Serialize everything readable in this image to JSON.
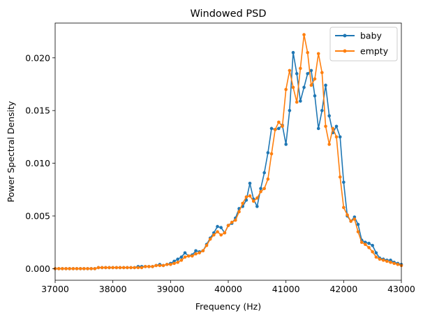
{
  "chart_data": {
    "type": "line",
    "title": "Windowed PSD",
    "xlabel": "Frequency (Hz)",
    "ylabel": "Power Spectral Density",
    "xlim": [
      37000,
      43000
    ],
    "ylim": [
      -0.0011,
      0.0233
    ],
    "xticks": [
      37000,
      38000,
      39000,
      40000,
      41000,
      42000,
      43000
    ],
    "xtick_labels": [
      "37000",
      "38000",
      "39000",
      "40000",
      "41000",
      "42000",
      "43000"
    ],
    "yticks": [
      0,
      0.005,
      0.01,
      0.015,
      0.02
    ],
    "ytick_labels": [
      "0.000",
      "0.005",
      "0.010",
      "0.015",
      "0.020"
    ],
    "grid": false,
    "legend_position": "top-right",
    "series": [
      {
        "name": "baby",
        "color": "#1f77b4",
        "marker": "dot",
        "x": [
          37000,
          37063,
          37125,
          37188,
          37250,
          37313,
          37375,
          37438,
          37500,
          37563,
          37625,
          37688,
          37750,
          37813,
          37875,
          37938,
          38000,
          38063,
          38125,
          38188,
          38250,
          38313,
          38375,
          38438,
          38500,
          38563,
          38625,
          38688,
          38750,
          38813,
          38875,
          38938,
          39000,
          39063,
          39125,
          39188,
          39250,
          39313,
          39375,
          39438,
          39500,
          39563,
          39625,
          39688,
          39750,
          39813,
          39875,
          39938,
          40000,
          40063,
          40125,
          40188,
          40250,
          40313,
          40375,
          40438,
          40500,
          40563,
          40625,
          40688,
          40750,
          40813,
          40875,
          40938,
          41000,
          41063,
          41125,
          41188,
          41250,
          41313,
          41375,
          41438,
          41500,
          41563,
          41625,
          41688,
          41750,
          41813,
          41875,
          41938,
          42000,
          42063,
          42125,
          42188,
          42250,
          42313,
          42375,
          42438,
          42500,
          42563,
          42625,
          42688,
          42750,
          42813,
          42875,
          42938,
          43000
        ],
        "y": [
          0.0,
          0.0,
          0.0,
          0.0,
          0.0,
          0.0,
          0.0,
          0.0,
          0.0,
          0.0,
          0.0,
          0.0,
          0.0001,
          0.0001,
          0.0001,
          0.0001,
          0.0001,
          0.0001,
          0.0001,
          0.0001,
          0.0001,
          0.0001,
          0.0001,
          0.0002,
          0.0002,
          0.0002,
          0.0002,
          0.0002,
          0.0003,
          0.0004,
          0.0003,
          0.0004,
          0.0005,
          0.0007,
          0.0009,
          0.0011,
          0.0015,
          0.0012,
          0.0013,
          0.0017,
          0.0016,
          0.0017,
          0.0023,
          0.0029,
          0.0034,
          0.004,
          0.0039,
          0.0034,
          0.0041,
          0.0043,
          0.0048,
          0.0057,
          0.0059,
          0.0065,
          0.0081,
          0.0066,
          0.0059,
          0.0076,
          0.0091,
          0.011,
          0.0133,
          0.0132,
          0.0133,
          0.0136,
          0.0118,
          0.015,
          0.0205,
          0.0185,
          0.0159,
          0.0172,
          0.0185,
          0.0188,
          0.0164,
          0.0133,
          0.015,
          0.0174,
          0.0145,
          0.0129,
          0.0135,
          0.0125,
          0.0082,
          0.005,
          0.0045,
          0.0049,
          0.0042,
          0.0027,
          0.0025,
          0.0024,
          0.0022,
          0.0015,
          0.001,
          0.0009,
          0.0008,
          0.0008,
          0.0006,
          0.0005,
          0.0004
        ]
      },
      {
        "name": "empty",
        "color": "#ff7f0e",
        "marker": "dot",
        "x": [
          37000,
          37063,
          37125,
          37188,
          37250,
          37313,
          37375,
          37438,
          37500,
          37563,
          37625,
          37688,
          37750,
          37813,
          37875,
          37938,
          38000,
          38063,
          38125,
          38188,
          38250,
          38313,
          38375,
          38438,
          38500,
          38563,
          38625,
          38688,
          38750,
          38813,
          38875,
          38938,
          39000,
          39063,
          39125,
          39188,
          39250,
          39313,
          39375,
          39438,
          39500,
          39563,
          39625,
          39688,
          39750,
          39813,
          39875,
          39938,
          40000,
          40063,
          40125,
          40188,
          40250,
          40313,
          40375,
          40438,
          40500,
          40563,
          40625,
          40688,
          40750,
          40813,
          40875,
          40938,
          41000,
          41063,
          41125,
          41188,
          41250,
          41313,
          41375,
          41438,
          41500,
          41563,
          41625,
          41688,
          41750,
          41813,
          41875,
          41938,
          42000,
          42063,
          42125,
          42188,
          42250,
          42313,
          42375,
          42438,
          42500,
          42563,
          42625,
          42688,
          42750,
          42813,
          42875,
          42938,
          43000
        ],
        "y": [
          0.0,
          0.0,
          0.0,
          0.0,
          0.0,
          0.0,
          0.0,
          0.0,
          0.0,
          0.0,
          0.0,
          0.0,
          0.0001,
          0.0001,
          0.0001,
          0.0001,
          0.0001,
          0.0001,
          0.0001,
          0.0001,
          0.0001,
          0.0001,
          0.0001,
          0.0001,
          0.0001,
          0.0002,
          0.0002,
          0.0002,
          0.0003,
          0.0003,
          0.0003,
          0.0004,
          0.0004,
          0.0005,
          0.0006,
          0.0008,
          0.0011,
          0.0012,
          0.0012,
          0.0014,
          0.0015,
          0.0017,
          0.0022,
          0.0028,
          0.0032,
          0.0035,
          0.0032,
          0.0034,
          0.0041,
          0.0044,
          0.0046,
          0.0054,
          0.0062,
          0.0068,
          0.0069,
          0.0064,
          0.0067,
          0.0073,
          0.0076,
          0.0085,
          0.0109,
          0.0132,
          0.0139,
          0.0135,
          0.017,
          0.0188,
          0.0172,
          0.0158,
          0.019,
          0.0222,
          0.0205,
          0.0174,
          0.018,
          0.0204,
          0.0186,
          0.0135,
          0.0118,
          0.0133,
          0.0125,
          0.0087,
          0.0058,
          0.0051,
          0.0045,
          0.0047,
          0.0035,
          0.0025,
          0.0023,
          0.002,
          0.0016,
          0.0011,
          0.0009,
          0.0008,
          0.0007,
          0.0006,
          0.0005,
          0.0004,
          0.0003
        ]
      }
    ]
  }
}
